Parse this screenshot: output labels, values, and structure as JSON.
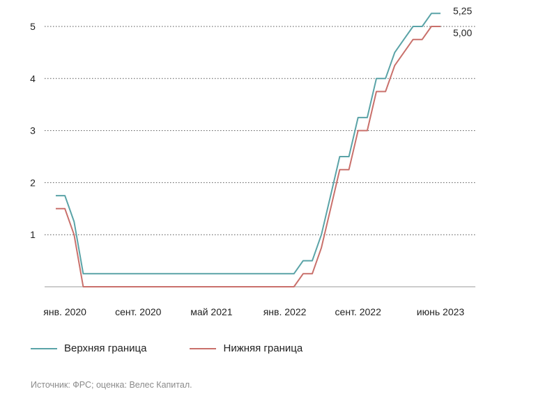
{
  "chart_data": {
    "type": "line",
    "title": "",
    "xlabel": "",
    "ylabel": "",
    "ylim": [
      0,
      5.3
    ],
    "yticks": [
      "1",
      "2",
      "3",
      "4",
      "5"
    ],
    "xtick_labels": [
      {
        "label": "янв. 2020",
        "x": "2020-01"
      },
      {
        "label": "сент. 2020",
        "x": "2020-09"
      },
      {
        "label": "май 2021",
        "x": "2021-05"
      },
      {
        "label": "янв. 2022",
        "x": "2022-01"
      },
      {
        "label": "сент. 2022",
        "x": "2022-09"
      },
      {
        "label": "июнь 2023",
        "x": "2023-06"
      }
    ],
    "grid": true,
    "legend_position": "bottom",
    "series": [
      {
        "name": "Верхняя граница",
        "color": "#5aa3a7",
        "end_label": "5,25",
        "points": [
          [
            "2019-12",
            1.75
          ],
          [
            "2020-01",
            1.75
          ],
          [
            "2020-02",
            1.25
          ],
          [
            "2020-03",
            0.25
          ],
          [
            "2022-02",
            0.25
          ],
          [
            "2022-03",
            0.5
          ],
          [
            "2022-04",
            0.5
          ],
          [
            "2022-05",
            1.0
          ],
          [
            "2022-06",
            1.75
          ],
          [
            "2022-07",
            2.5
          ],
          [
            "2022-08",
            2.5
          ],
          [
            "2022-09",
            3.25
          ],
          [
            "2022-10",
            3.25
          ],
          [
            "2022-11",
            4.0
          ],
          [
            "2022-12",
            4.0
          ],
          [
            "2023-01",
            4.5
          ],
          [
            "2023-02",
            4.75
          ],
          [
            "2023-03",
            5.0
          ],
          [
            "2023-04",
            5.0
          ],
          [
            "2023-05",
            5.25
          ],
          [
            "2023-06",
            5.25
          ]
        ]
      },
      {
        "name": "Нижняя граница",
        "color": "#c9706b",
        "end_label": "5,00",
        "points": [
          [
            "2019-12",
            1.5
          ],
          [
            "2020-01",
            1.5
          ],
          [
            "2020-02",
            1.0
          ],
          [
            "2020-03",
            0.0
          ],
          [
            "2022-02",
            0.0
          ],
          [
            "2022-03",
            0.25
          ],
          [
            "2022-04",
            0.25
          ],
          [
            "2022-05",
            0.75
          ],
          [
            "2022-06",
            1.5
          ],
          [
            "2022-07",
            2.25
          ],
          [
            "2022-08",
            2.25
          ],
          [
            "2022-09",
            3.0
          ],
          [
            "2022-10",
            3.0
          ],
          [
            "2022-11",
            3.75
          ],
          [
            "2022-12",
            3.75
          ],
          [
            "2023-01",
            4.25
          ],
          [
            "2023-02",
            4.5
          ],
          [
            "2023-03",
            4.75
          ],
          [
            "2023-04",
            4.75
          ],
          [
            "2023-05",
            5.0
          ],
          [
            "2023-06",
            5.0
          ]
        ]
      }
    ]
  },
  "legend": {
    "upper_label": "Верхняя граница",
    "lower_label": "Нижняя граница",
    "upper_color": "#5aa3a7",
    "lower_color": "#c9706b"
  },
  "source": "Источник: ФРС; оценка: Велес Капитал."
}
